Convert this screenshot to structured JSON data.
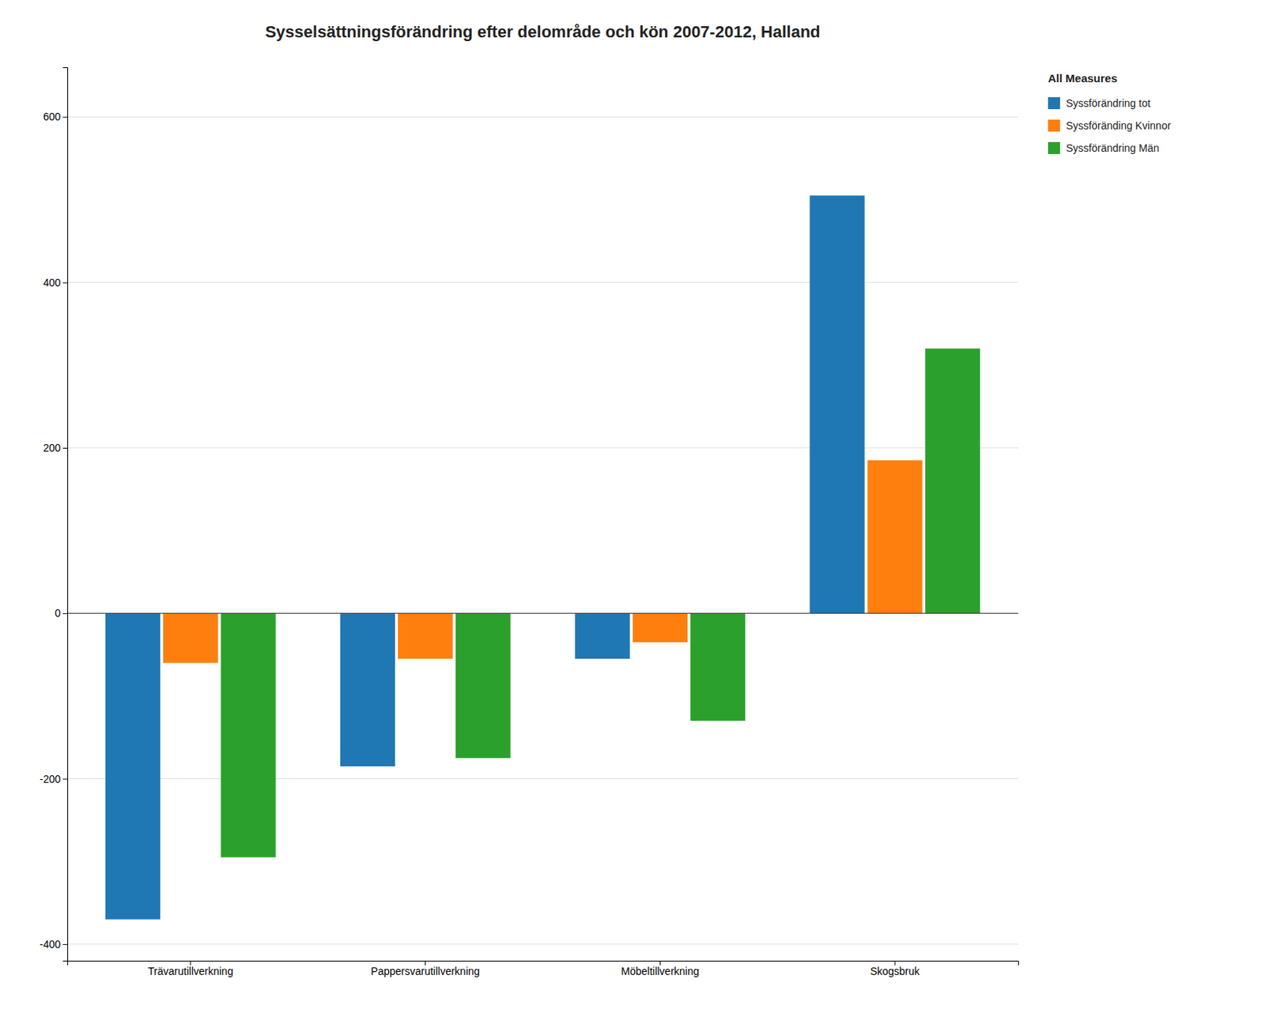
{
  "chart_data": {
    "type": "bar",
    "title": "Sysselsättningsförändring efter delområde och kön 2007-2012, Halland",
    "categories": [
      "Trävarutillverkning",
      "Pappersvarutillverkning",
      "Möbeltillverkning",
      "Skogsbruk"
    ],
    "series": [
      {
        "name": "Syssförändring tot",
        "values": [
          -370,
          -185,
          -55,
          505
        ]
      },
      {
        "name": "Syssföränding Kvinnor",
        "values": [
          -60,
          -55,
          -35,
          185
        ]
      },
      {
        "name": "Syssförändring Män",
        "values": [
          -295,
          -175,
          -130,
          320
        ]
      }
    ],
    "ylim": [
      -420,
      660
    ],
    "yticks": [
      -400,
      -200,
      0,
      200,
      400,
      600
    ],
    "grid": true,
    "legend": "right",
    "legend_title": "All Measures"
  }
}
